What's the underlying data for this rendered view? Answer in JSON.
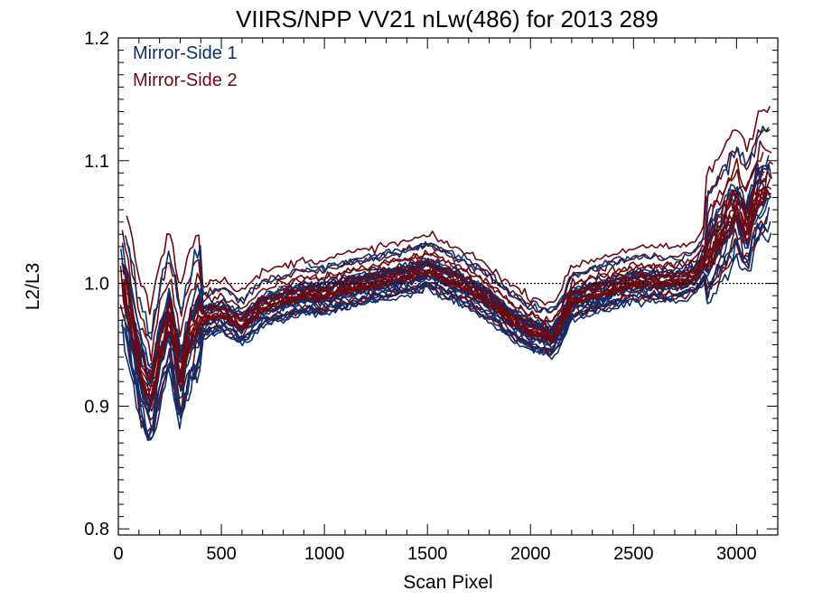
{
  "chart_data": {
    "type": "line",
    "title": "VIIRS/NPP VV21 nLw(486) for 2013 289",
    "xlabel": "Scan Pixel",
    "ylabel": "L2/L3",
    "xlim": [
      0,
      3200
    ],
    "ylim": [
      0.795,
      1.2
    ],
    "x_ticks": [
      0,
      500,
      1000,
      1500,
      2000,
      2500,
      3000
    ],
    "x_tick_labels": [
      "0",
      "500",
      "1000",
      "1500",
      "2000",
      "2500",
      "3000"
    ],
    "y_ticks": [
      0.8,
      0.9,
      1.0,
      1.1,
      1.2
    ],
    "y_tick_labels": [
      "0.8",
      "0.9",
      "1.0",
      "1.1",
      "1.2"
    ],
    "reference_line": {
      "y": 1.0,
      "style": "dotted"
    },
    "grid": false,
    "legend_position": "top-left",
    "colors": {
      "mirror_side_1": "#0d2f6e",
      "mirror_side_2": "#6b0a12"
    },
    "series": [
      {
        "name": "Mirror-Side 1",
        "color": "#0d2f6e",
        "lines": 20
      },
      {
        "name": "Mirror-Side 2",
        "color": "#6b0a12",
        "lines": 20
      },
      {
        "profile_x": [
          0,
          30,
          60,
          100,
          140,
          160,
          200,
          250,
          300,
          350,
          400,
          500,
          600,
          700,
          800,
          900,
          1000,
          1100,
          1200,
          1300,
          1400,
          1500,
          1600,
          1700,
          1800,
          1900,
          2000,
          2100,
          2150,
          2200,
          2300,
          2400,
          2500,
          2600,
          2700,
          2800,
          2900,
          3000,
          3050,
          3100,
          3200
        ],
        "profile_y": [
          1.02,
          0.995,
          0.965,
          0.93,
          0.91,
          0.905,
          0.94,
          0.97,
          0.92,
          0.955,
          0.97,
          0.975,
          0.965,
          0.98,
          0.985,
          0.99,
          0.99,
          0.995,
          0.998,
          1.002,
          1.005,
          1.01,
          1.003,
          0.995,
          0.985,
          0.97,
          0.96,
          0.955,
          0.965,
          0.985,
          0.99,
          0.995,
          1.0,
          1.0,
          1.0,
          1.005,
          1.03,
          1.06,
          1.04,
          1.07,
          1.08
        ]
      }
    ]
  }
}
